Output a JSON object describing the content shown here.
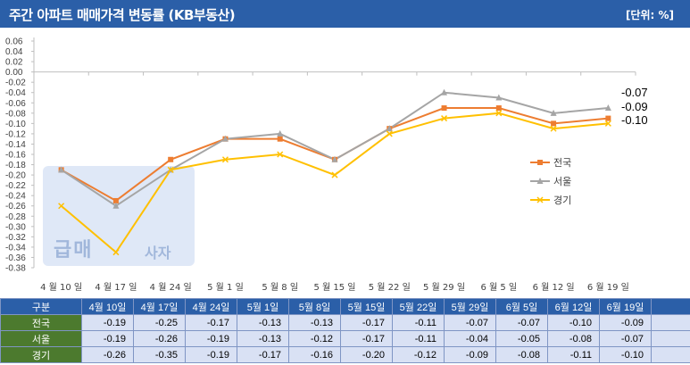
{
  "header": {
    "title": "주간 아파트 매매가격 변동률 (KB부동산)",
    "unit": "[단위: %]"
  },
  "watermark": {
    "text_main": "급매",
    "text_side": "사자"
  },
  "colors": {
    "header_bg": "#2b5fa8",
    "row_header_bg": "#4c7a2e",
    "table_cell_bg": "#d9e1f4",
    "series_nationwide": "#ed7d31",
    "series_seoul": "#a5a5a5",
    "series_gyeonggi": "#ffc000"
  },
  "chart_data": {
    "type": "line",
    "title": "주간 아파트 매매가격 변동률 (KB부동산)",
    "categories": [
      "4월 10일",
      "4월 17일",
      "4월 24일",
      "5월 1일",
      "5월 8일",
      "5월 15일",
      "5월 22일",
      "5월 29일",
      "6월 5일",
      "6월 12일",
      "6월 19일"
    ],
    "series": [
      {
        "name": "전국",
        "marker": "square",
        "values": [
          -0.19,
          -0.25,
          -0.17,
          -0.13,
          -0.13,
          -0.17,
          -0.11,
          -0.07,
          -0.07,
          -0.1,
          -0.09
        ]
      },
      {
        "name": "서울",
        "marker": "triangle",
        "values": [
          -0.19,
          -0.26,
          -0.19,
          -0.13,
          -0.12,
          -0.17,
          -0.11,
          -0.04,
          -0.05,
          -0.08,
          -0.07
        ]
      },
      {
        "name": "경기",
        "marker": "x",
        "values": [
          -0.26,
          -0.35,
          -0.19,
          -0.17,
          -0.16,
          -0.2,
          -0.12,
          -0.09,
          -0.08,
          -0.11,
          -0.1
        ]
      }
    ],
    "yticks": [
      "0.06",
      "0.04",
      "0.02",
      "0.00",
      "-0.02",
      "-0.04",
      "-0.06",
      "-0.08",
      "-0.10",
      "-0.12",
      "-0.14",
      "-0.16",
      "-0.18",
      "-0.20",
      "-0.22",
      "-0.24",
      "-0.26",
      "-0.28",
      "-0.30",
      "-0.32",
      "-0.34",
      "-0.36",
      "-0.38"
    ],
    "ylim": [
      -0.38,
      0.06
    ],
    "grid": false,
    "legend": "right",
    "end_labels": [
      "-0.07",
      "-0.09",
      "-0.10"
    ]
  },
  "table": {
    "corner": "구분",
    "columns": [
      "4월 10일",
      "4월 17일",
      "4월 24일",
      "5월 1일",
      "5월 8일",
      "5월 15일",
      "5월 22일",
      "5월 29일",
      "6월 5일",
      "6월 12일",
      "6월 19일"
    ],
    "rows": [
      {
        "label": "전국",
        "values": [
          "-0.19",
          "-0.25",
          "-0.17",
          "-0.13",
          "-0.13",
          "-0.17",
          "-0.11",
          "-0.07",
          "-0.07",
          "-0.10",
          "-0.09"
        ]
      },
      {
        "label": "서울",
        "values": [
          "-0.19",
          "-0.26",
          "-0.19",
          "-0.13",
          "-0.12",
          "-0.17",
          "-0.11",
          "-0.04",
          "-0.05",
          "-0.08",
          "-0.07"
        ]
      },
      {
        "label": "경기",
        "values": [
          "-0.26",
          "-0.35",
          "-0.19",
          "-0.17",
          "-0.16",
          "-0.20",
          "-0.12",
          "-0.09",
          "-0.08",
          "-0.11",
          "-0.10"
        ]
      }
    ]
  }
}
